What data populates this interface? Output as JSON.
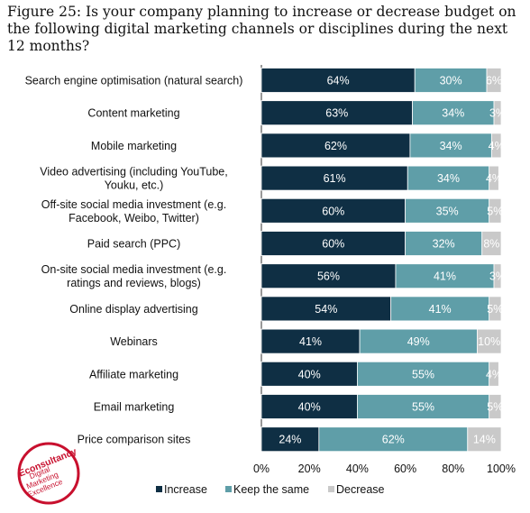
{
  "figure": {
    "title": "Figure 25: Is your company planning to increase or decrease budget on the following digital marketing channels or disciplines during the next 12 months?"
  },
  "colors": {
    "increase": "#0f2f44",
    "keep_the_same": "#5f9ea8",
    "decrease": "#c9c9c9",
    "logo_red": "#c8102e"
  },
  "logo": {
    "brand": "Econsultancy",
    "tagline_lines": [
      "Digital",
      "Marketing",
      "Excellence"
    ]
  },
  "chart_data": {
    "type": "bar",
    "orientation": "horizontal",
    "stacked": true,
    "percent_stacked": true,
    "categories": [
      "Search engine optimisation (natural search)",
      "Content marketing",
      "Mobile marketing",
      "Video advertising (including YouTube, Youku, etc.)",
      "Off-site social media investment (e.g. Facebook, Weibo, Twitter)",
      "Paid search (PPC)",
      "On-site social media investment (e.g. ratings and reviews, blogs)",
      "Online display advertising",
      "Webinars",
      "Affiliate marketing",
      "Email marketing",
      "Price comparison sites"
    ],
    "category_lines": [
      [
        "Search engine optimisation (natural search)"
      ],
      [
        "Content marketing"
      ],
      [
        "Mobile marketing"
      ],
      [
        "Video advertising (including YouTube,",
        "Youku, etc.)"
      ],
      [
        "Off-site social media investment (e.g.",
        "Facebook, Weibo, Twitter)"
      ],
      [
        "Paid search (PPC)"
      ],
      [
        "On-site social media investment (e.g.",
        "ratings and reviews, blogs)"
      ],
      [
        "Online display advertising"
      ],
      [
        "Webinars"
      ],
      [
        "Affiliate marketing"
      ],
      [
        "Email marketing"
      ],
      [
        "Price comparison sites"
      ]
    ],
    "series": [
      {
        "name": "Increase",
        "values": [
          64,
          63,
          62,
          61,
          60,
          60,
          56,
          54,
          41,
          40,
          40,
          24
        ],
        "labels": [
          "64%",
          "63%",
          "62%",
          "61%",
          "60%",
          "60%",
          "56%",
          "54%",
          "41%",
          "40%",
          "40%",
          "24%"
        ]
      },
      {
        "name": "Keep the same",
        "values": [
          30,
          34,
          34,
          34,
          35,
          32,
          41,
          41,
          49,
          55,
          55,
          62
        ],
        "labels": [
          "30%",
          "34%",
          "34%",
          "34%",
          "35%",
          "32%",
          "41%",
          "41%",
          "49%",
          "55%",
          "55%",
          "62%"
        ]
      },
      {
        "name": "Decrease",
        "values": [
          6,
          3,
          4,
          4,
          5,
          8,
          3,
          5,
          10,
          4,
          5,
          14
        ],
        "labels": [
          "6%",
          "3%",
          "4%",
          "4%",
          "5%",
          "8%",
          "3%",
          "5%",
          "10%",
          "4%",
          "5%",
          "14%"
        ]
      }
    ],
    "xlim": [
      0,
      100
    ],
    "xticks": [
      0,
      20,
      40,
      60,
      80,
      100
    ],
    "xtick_labels": [
      "0%",
      "20%",
      "40%",
      "60%",
      "80%",
      "100%"
    ],
    "grid": false,
    "legend_position": "bottom"
  }
}
